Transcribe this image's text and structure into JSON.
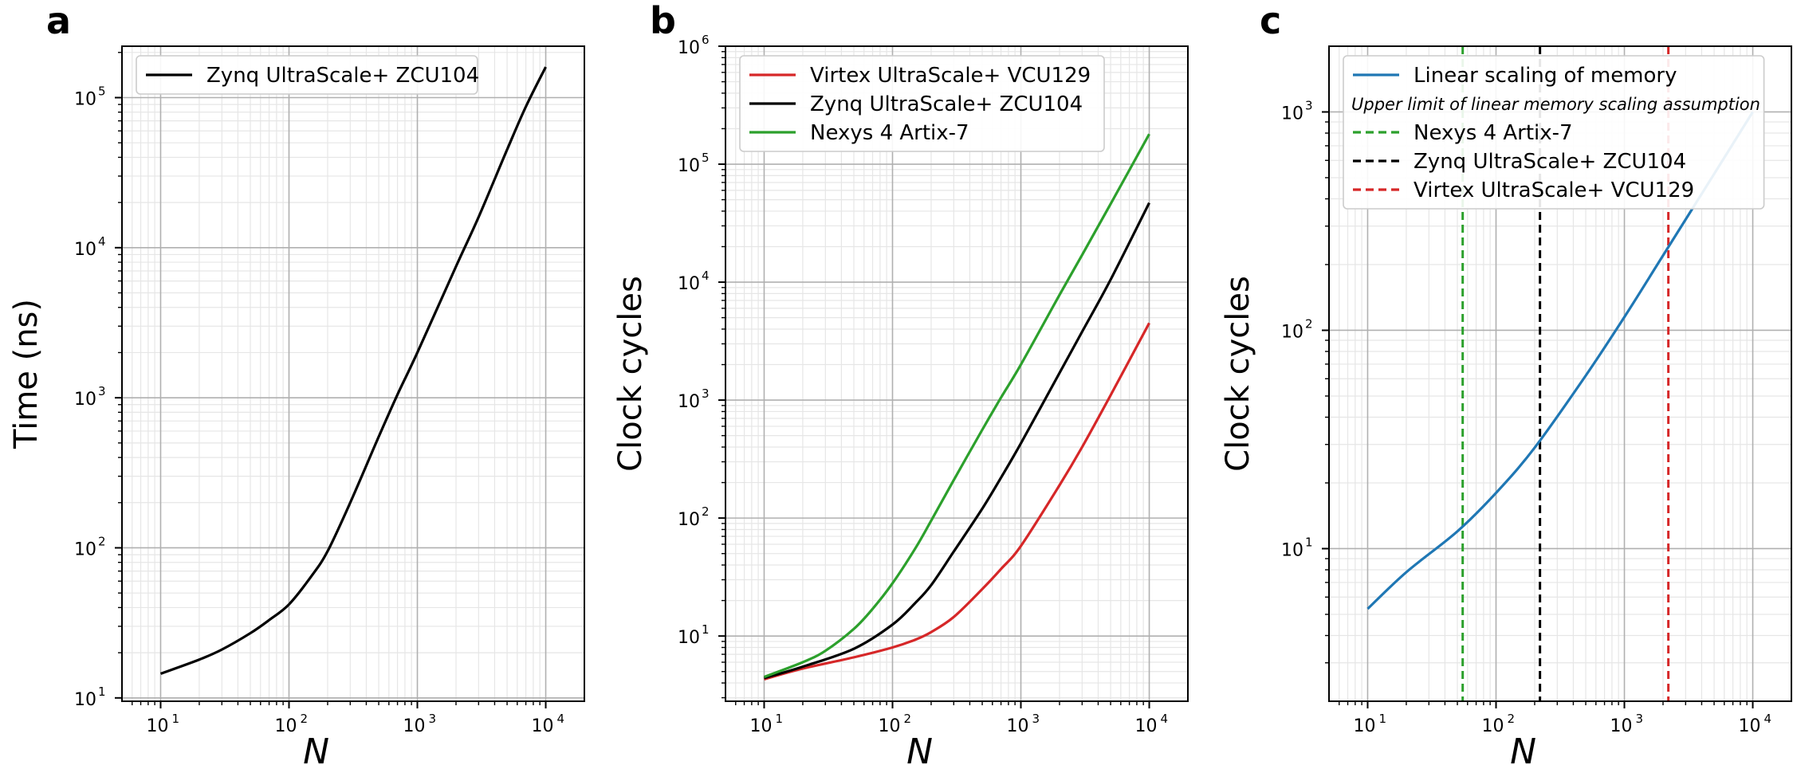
{
  "figure": {
    "panel_letters": [
      "a",
      "b",
      "c"
    ]
  },
  "chart_data": [
    {
      "panel": "a",
      "type": "line",
      "xlabel": "N",
      "ylabel": "Time (ns)",
      "xscale": "log",
      "yscale": "log",
      "xlim": [
        5,
        20000
      ],
      "ylim": [
        9.5,
        220000
      ],
      "xticks": [
        10,
        100,
        1000,
        10000
      ],
      "yticks": [
        10,
        100,
        1000,
        10000,
        100000
      ],
      "grid": "major and minor",
      "legend_position": "top-left",
      "series": [
        {
          "name": "Zynq UltraScale+ ZCU104",
          "color": "#000000",
          "x": [
            10,
            20,
            30,
            50,
            70,
            100,
            150,
            200,
            300,
            500,
            700,
            1000,
            2000,
            3000,
            5000,
            7000,
            10000
          ],
          "y": [
            14.5,
            18,
            21,
            27,
            33,
            42,
            65,
            95,
            200,
            550,
            1050,
            2000,
            7500,
            16000,
            45000,
            87000,
            160000
          ]
        }
      ]
    },
    {
      "panel": "b",
      "type": "line",
      "xlabel": "N",
      "ylabel": "Clock cycles",
      "xscale": "log",
      "yscale": "log",
      "xlim": [
        5,
        20000
      ],
      "ylim": [
        2.8,
        1000000
      ],
      "xticks": [
        10,
        100,
        1000,
        10000
      ],
      "yticks": [
        10,
        100,
        1000,
        10000,
        100000,
        1000000
      ],
      "grid": "major and minor",
      "legend_position": "top-left",
      "series": [
        {
          "name": "Virtex UltraScale+ VCU129",
          "color": "#d62728",
          "x": [
            10,
            20,
            50,
            100,
            150,
            200,
            300,
            500,
            700,
            1000,
            2000,
            3000,
            5000,
            10000
          ],
          "y": [
            4.3,
            5.3,
            6.6,
            8.0,
            9.3,
            10.8,
            14.5,
            25,
            37,
            58,
            190,
            400,
            1100,
            4500
          ]
        },
        {
          "name": "Zynq UltraScale+ ZCU104",
          "color": "#000000",
          "x": [
            10,
            20,
            50,
            100,
            150,
            200,
            300,
            500,
            700,
            1000,
            2000,
            3000,
            5000,
            10000
          ],
          "y": [
            4.4,
            5.5,
            7.8,
            12.5,
            19,
            27,
            52,
            120,
            220,
            430,
            1700,
            3800,
            10500,
            47000
          ]
        },
        {
          "name": "Nexys 4 Artix-7",
          "color": "#2ca02c",
          "x": [
            10,
            20,
            30,
            50,
            70,
            100,
            150,
            200,
            300,
            500,
            700,
            1000,
            2000,
            3000,
            5000,
            10000
          ],
          "y": [
            4.5,
            6.0,
            7.5,
            11.5,
            17,
            28,
            55,
            95,
            210,
            560,
            1050,
            2000,
            7800,
            17000,
            46000,
            180000
          ]
        }
      ]
    },
    {
      "panel": "c",
      "type": "line",
      "xlabel": "N",
      "ylabel": "Clock cycles",
      "xscale": "log",
      "yscale": "log",
      "xlim": [
        5,
        20000
      ],
      "ylim": [
        2,
        2000
      ],
      "xticks": [
        10,
        100,
        1000,
        10000
      ],
      "yticks": [
        10,
        100,
        1000
      ],
      "grid": "major and minor",
      "legend_position": "top-left",
      "legend_note": "Upper limit of linear memory scaling assumption",
      "series": [
        {
          "name": "Linear scaling of memory",
          "color": "#1f77b4",
          "x": [
            10,
            20,
            50,
            100,
            200,
            500,
            1000,
            2000,
            5000,
            10000
          ],
          "y": [
            5.3,
            7.8,
            12,
            18,
            29,
            62,
            115,
            220,
            520,
            1000
          ]
        }
      ],
      "vlines": [
        {
          "name": "Nexys 4 Artix-7",
          "x": 55,
          "color": "#2ca02c"
        },
        {
          "name": "Zynq UltraScale+ ZCU104",
          "x": 220,
          "color": "#000000"
        },
        {
          "name": "Virtex UltraScale+ VCU129",
          "x": 2200,
          "color": "#d62728"
        }
      ]
    }
  ]
}
